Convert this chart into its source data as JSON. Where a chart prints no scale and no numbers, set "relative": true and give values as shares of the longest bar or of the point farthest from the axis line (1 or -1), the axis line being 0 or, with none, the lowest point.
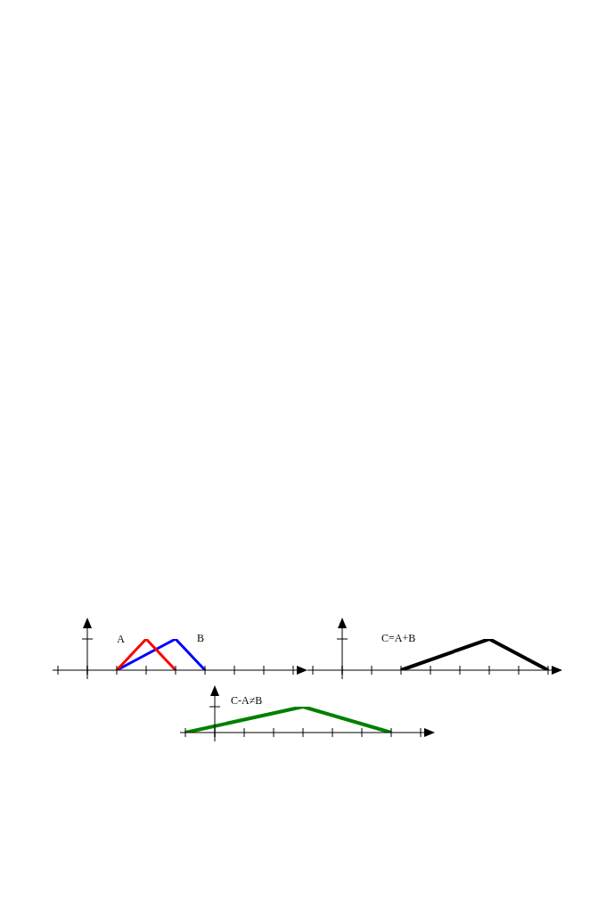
{
  "chart_data": [
    {
      "type": "line",
      "relative": true,
      "categories": [
        null,
        null,
        null,
        null,
        null,
        null,
        null,
        null,
        null
      ],
      "series": [
        {
          "name": "A",
          "color": "#ff0000",
          "values": [
            null,
            null,
            0,
            1,
            0,
            null,
            null,
            null,
            null
          ]
        },
        {
          "name": "B",
          "color": "#0000ff",
          "values": [
            null,
            null,
            0,
            null,
            1,
            0,
            null,
            null,
            null
          ]
        }
      ],
      "marker": "none",
      "legend": false
    },
    {
      "type": "line",
      "relative": true,
      "categories": [
        null,
        null,
        null,
        null,
        null,
        null,
        null,
        null,
        null
      ],
      "series": [
        {
          "name": "C=A+B",
          "color": "#000000",
          "values": [
            null,
            null,
            null,
            0,
            null,
            null,
            1,
            null,
            0
          ]
        }
      ],
      "marker": "none",
      "legend": "top left"
    },
    {
      "type": "line",
      "relative": true,
      "categories": [
        null,
        null,
        null,
        null,
        null,
        null,
        null,
        null,
        null
      ],
      "series": [
        {
          "name": "C-A≠B",
          "color": "#008000",
          "values": [
            0,
            null,
            null,
            null,
            1,
            null,
            null,
            0,
            null
          ]
        }
      ],
      "marker": "none",
      "legend": false
    }
  ]
}
